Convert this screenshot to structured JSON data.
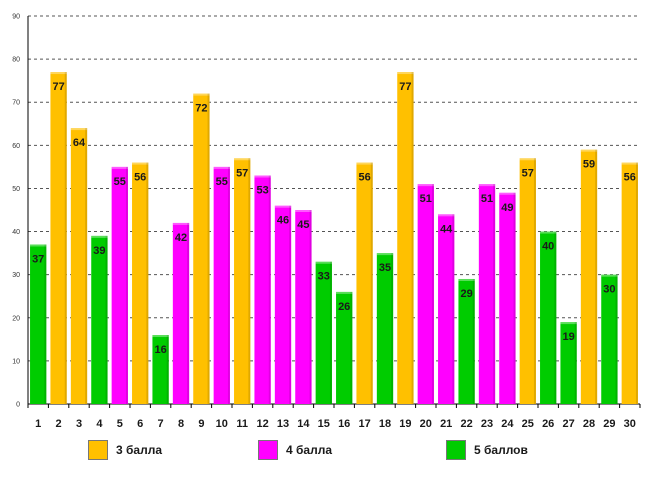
{
  "chart_data": {
    "type": "bar",
    "title": "",
    "xlabel": "",
    "ylabel": "",
    "ylim": [
      0,
      90
    ],
    "yticks": [
      "0",
      "10",
      "20",
      "30",
      "40",
      "50",
      "60",
      "70",
      "80",
      "90"
    ],
    "grid": true,
    "categories": [
      "1",
      "2",
      "3",
      "4",
      "5",
      "6",
      "7",
      "8",
      "9",
      "10",
      "11",
      "12",
      "13",
      "14",
      "15",
      "16",
      "17",
      "18",
      "19",
      "20",
      "21",
      "22",
      "23",
      "24",
      "25",
      "26",
      "27",
      "28",
      "29",
      "30"
    ],
    "values": [
      37,
      77,
      64,
      39,
      55,
      56,
      16,
      42,
      72,
      55,
      57,
      53,
      46,
      45,
      33,
      26,
      56,
      35,
      77,
      51,
      44,
      29,
      51,
      49,
      57,
      40,
      19,
      59,
      30,
      56
    ],
    "groups": [
      "g5",
      "g3",
      "g3",
      "g5",
      "g4",
      "g3",
      "g5",
      "g4",
      "g3",
      "g4",
      "g3",
      "g4",
      "g4",
      "g4",
      "g5",
      "g5",
      "g3",
      "g5",
      "g3",
      "g4",
      "g4",
      "g5",
      "g4",
      "g4",
      "g3",
      "g5",
      "g5",
      "g3",
      "g5",
      "g3"
    ],
    "legend": [
      {
        "id": "g3",
        "label": "3 балла",
        "color": "#FFC000"
      },
      {
        "id": "g4",
        "label": "4 балла",
        "color": "#FF00FF"
      },
      {
        "id": "g5",
        "label": "5 баллов",
        "color": "#00CC00"
      }
    ]
  }
}
